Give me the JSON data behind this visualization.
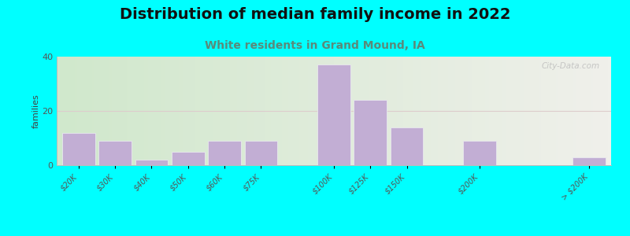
{
  "title": "Distribution of median family income in 2022",
  "subtitle": "White residents in Grand Mound, IA",
  "ylabel": "families",
  "categories": [
    "$20K",
    "$30K",
    "$40K",
    "$50K",
    "$60K",
    "$75K",
    "$100K",
    "$125K",
    "$150K",
    "$200K",
    "> $200K"
  ],
  "values": [
    12,
    9,
    2,
    5,
    9,
    9,
    37,
    24,
    14,
    9,
    3
  ],
  "bar_color": "#c2aed4",
  "bar_edge_color": "#e8e8ee",
  "background_outer": "#00ffff",
  "background_inner_left": "#d0e8cc",
  "background_inner_right": "#f0f0eb",
  "grid_color": "#ddcccc",
  "ylim": [
    0,
    40
  ],
  "yticks": [
    0,
    20,
    40
  ],
  "watermark": "City-Data.com",
  "title_fontsize": 14,
  "subtitle_fontsize": 10,
  "subtitle_color": "#5a8a7a",
  "bar_positions": [
    0,
    1,
    2,
    3,
    4,
    5,
    7,
    8,
    9,
    11,
    14
  ],
  "bar_width": 0.9
}
